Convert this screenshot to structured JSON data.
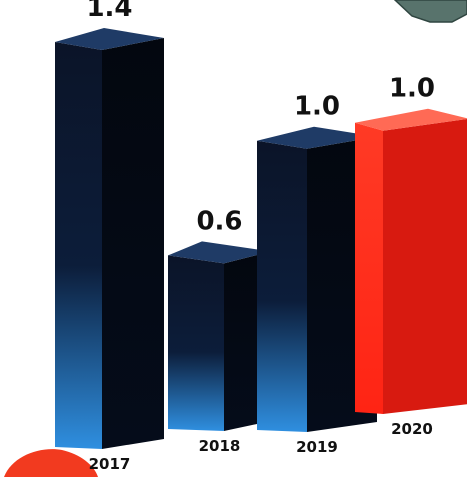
{
  "chart_data": {
    "type": "bar",
    "categories": [
      "2017",
      "2018",
      "2019",
      "2020"
    ],
    "values": [
      1.4,
      0.6,
      1.0,
      1.0
    ],
    "value_labels": [
      "1.4",
      "0.6",
      "1.0",
      "1.0"
    ],
    "title": "",
    "xlabel": "",
    "ylabel": "",
    "ylim": [
      0,
      1.4
    ],
    "grid": false,
    "bar_style": "3d",
    "colors": {
      "default_bar_front": "#0b1428",
      "default_bar_side": "#03070f",
      "default_bar_top": "#1f3b66",
      "default_bar_glow": "#2f8fe0",
      "highlight_bar_front": "#ff2a1a",
      "highlight_bar_side": "#d81a10",
      "highlight_bar_top": "#ff6a55",
      "highlight_category": "2020"
    }
  }
}
